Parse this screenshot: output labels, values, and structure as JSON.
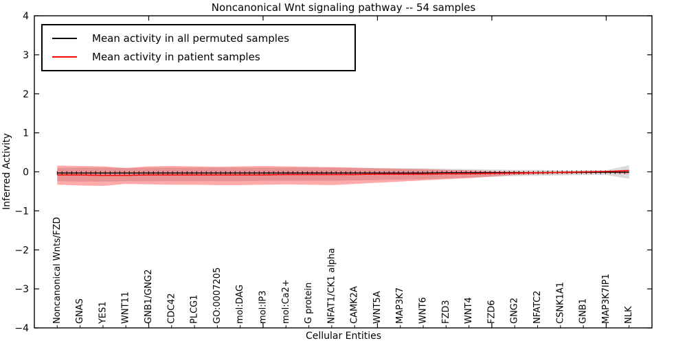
{
  "figure": {
    "title": "Noncanonical Wnt signaling pathway -- 54 samples",
    "xlabel": "Cellular Entities",
    "ylabel": "Inferred Activity"
  },
  "legend": {
    "items": [
      {
        "label": "Mean activity in all permuted samples",
        "color": "#000000"
      },
      {
        "label": "Mean activity in patient samples",
        "color": "#ff0000"
      }
    ]
  },
  "colors": {
    "permuted_line": "#000000",
    "patient_line": "#ff0000",
    "permuted_band": "#999999",
    "patient_band": "#ff0000",
    "axis": "#000000"
  },
  "chart_data": {
    "type": "line",
    "title": "Noncanonical Wnt signaling pathway -- 54 samples",
    "xlabel": "Cellular Entities",
    "ylabel": "Inferred Activity",
    "ylim": [
      -4,
      4
    ],
    "yticks": [
      4,
      3,
      2,
      1,
      0,
      -1,
      -2,
      -3,
      -4
    ],
    "x_major_tick_indices": [
      4,
      9,
      14,
      19,
      24
    ],
    "grid": false,
    "legend_position": "upper left",
    "categories": [
      "Noncanonical Wnts/FZD",
      "GNAS",
      "YES1",
      "WNT11",
      "GNB1/GNG2",
      "CDC42",
      "PLCG1",
      "GO:0007205",
      "mol:DAG",
      "mol:IP3",
      "mol:Ca2+",
      "G protein",
      "NFAT1/CK1 alpha",
      "CAMK2A",
      "WNT5A",
      "MAP3K7",
      "WNT6",
      "FZD3",
      "WNT4",
      "FZD6",
      "GNG2",
      "NFATC2",
      "CSNK1A1",
      "GNB1",
      "MAP3K7IP1",
      "NLK"
    ],
    "series": [
      {
        "name": "Mean activity in all permuted samples",
        "color": "#000000",
        "marker": "+",
        "band_color": "#999999",
        "band_opacity": 0.35,
        "values": [
          -0.03,
          -0.03,
          -0.03,
          -0.03,
          -0.03,
          -0.03,
          -0.03,
          -0.03,
          -0.03,
          -0.03,
          -0.03,
          -0.03,
          -0.03,
          -0.03,
          -0.03,
          -0.03,
          -0.03,
          -0.02,
          -0.02,
          -0.02,
          -0.02,
          -0.02,
          -0.01,
          -0.01,
          -0.01,
          -0.01
        ],
        "band_upper": [
          0.1,
          0.11,
          0.11,
          0.1,
          0.11,
          0.11,
          0.11,
          0.11,
          0.11,
          0.11,
          0.11,
          0.11,
          0.11,
          0.1,
          0.1,
          0.09,
          0.09,
          0.08,
          0.07,
          0.06,
          0.05,
          0.05,
          0.04,
          0.04,
          0.04,
          0.17
        ],
        "band_lower": [
          -0.24,
          -0.25,
          -0.25,
          -0.24,
          -0.24,
          -0.24,
          -0.24,
          -0.24,
          -0.24,
          -0.23,
          -0.23,
          -0.23,
          -0.23,
          -0.22,
          -0.21,
          -0.2,
          -0.19,
          -0.17,
          -0.15,
          -0.13,
          -0.11,
          -0.1,
          -0.09,
          -0.08,
          -0.08,
          -0.18
        ]
      },
      {
        "name": "Mean activity in patient samples",
        "color": "#ff0000",
        "marker": "none",
        "band_color": "#ff0000",
        "band_opacity": 0.33,
        "values": [
          -0.08,
          -0.08,
          -0.09,
          -0.09,
          -0.08,
          -0.08,
          -0.08,
          -0.08,
          -0.08,
          -0.08,
          -0.07,
          -0.07,
          -0.07,
          -0.07,
          -0.06,
          -0.06,
          -0.06,
          -0.05,
          -0.05,
          -0.04,
          -0.03,
          -0.02,
          -0.01,
          0.0,
          0.01,
          0.03
        ],
        "band_upper": [
          0.16,
          0.15,
          0.14,
          0.1,
          0.14,
          0.15,
          0.14,
          0.13,
          0.14,
          0.15,
          0.14,
          0.13,
          0.12,
          0.11,
          0.09,
          0.08,
          0.07,
          0.05,
          0.04,
          0.02,
          0.01,
          0.0,
          0.0,
          0.01,
          0.02,
          0.06
        ],
        "band_lower": [
          -0.33,
          -0.35,
          -0.36,
          -0.31,
          -0.32,
          -0.33,
          -0.33,
          -0.34,
          -0.34,
          -0.33,
          -0.32,
          -0.33,
          -0.34,
          -0.31,
          -0.28,
          -0.25,
          -0.22,
          -0.19,
          -0.16,
          -0.12,
          -0.08,
          -0.06,
          -0.05,
          -0.04,
          -0.03,
          -0.05
        ]
      }
    ]
  }
}
